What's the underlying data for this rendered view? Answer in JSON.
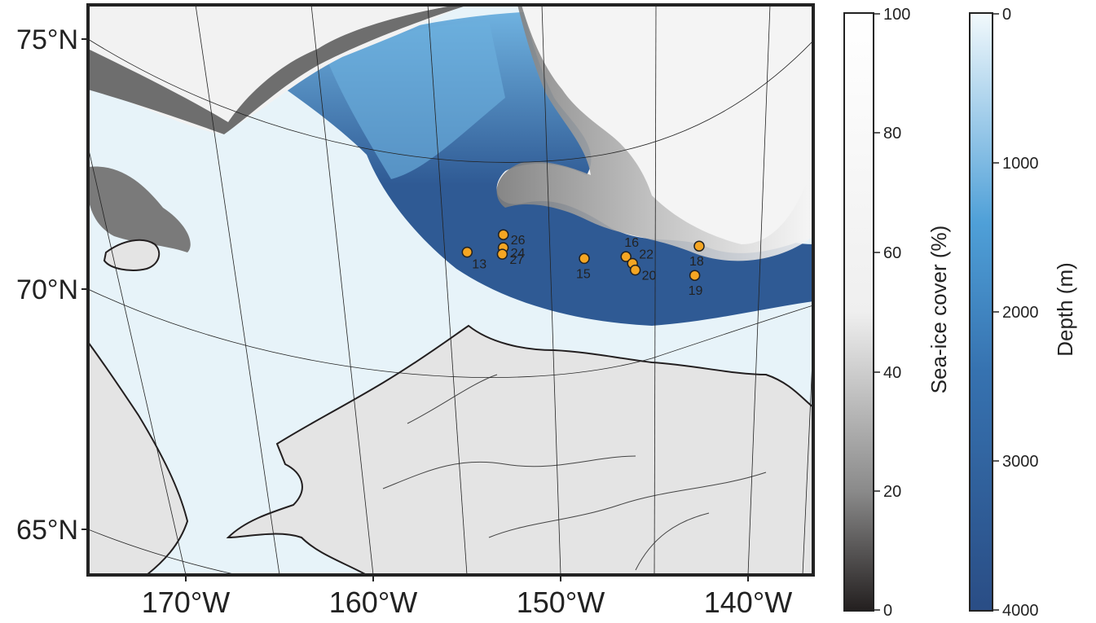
{
  "map": {
    "lat_labels": [
      "75°N",
      "70°N",
      "65°N"
    ],
    "lon_labels": [
      "170°W",
      "160°W",
      "150°W",
      "140°W"
    ],
    "sites": [
      {
        "id": "13",
        "lat": 71.2,
        "lon": -155.3
      },
      {
        "id": "24",
        "lat": 71.3,
        "lon": -153.4
      },
      {
        "id": "26",
        "lat": 71.7,
        "lon": -153.5
      },
      {
        "id": "27",
        "lat": 71.1,
        "lon": -153.4
      },
      {
        "id": "15",
        "lat": 71.0,
        "lon": -149.0
      },
      {
        "id": "16",
        "lat": 71.1,
        "lon": -146.8
      },
      {
        "id": "22",
        "lat": 70.9,
        "lon": -146.4
      },
      {
        "id": "20",
        "lat": 70.7,
        "lon": -146.2
      },
      {
        "id": "18",
        "lat": 71.5,
        "lon": -143.0
      },
      {
        "id": "19",
        "lat": 70.6,
        "lon": -143.0
      }
    ],
    "marker_color": "#F5A623"
  },
  "colorbars": {
    "seaice": {
      "title": "Sea-ice cover (%)",
      "ticks": [
        "100",
        "80",
        "60",
        "40",
        "20",
        "0"
      ],
      "color_top": "#FFFFFF",
      "color_bottom": "#231F1F"
    },
    "depth": {
      "title": "Depth (m)",
      "ticks": [
        "0",
        "1000",
        "2000",
        "3000",
        "4000"
      ],
      "color_top": "#F2F9FC",
      "color_bottom": "#2A4D85"
    }
  },
  "colors": {
    "land": "#E4E4E4",
    "shallow_water": "#E7F3F9",
    "deep_water": "#2F5A94",
    "sea_ice": "#BDBDBD",
    "coast": "#231F20"
  }
}
